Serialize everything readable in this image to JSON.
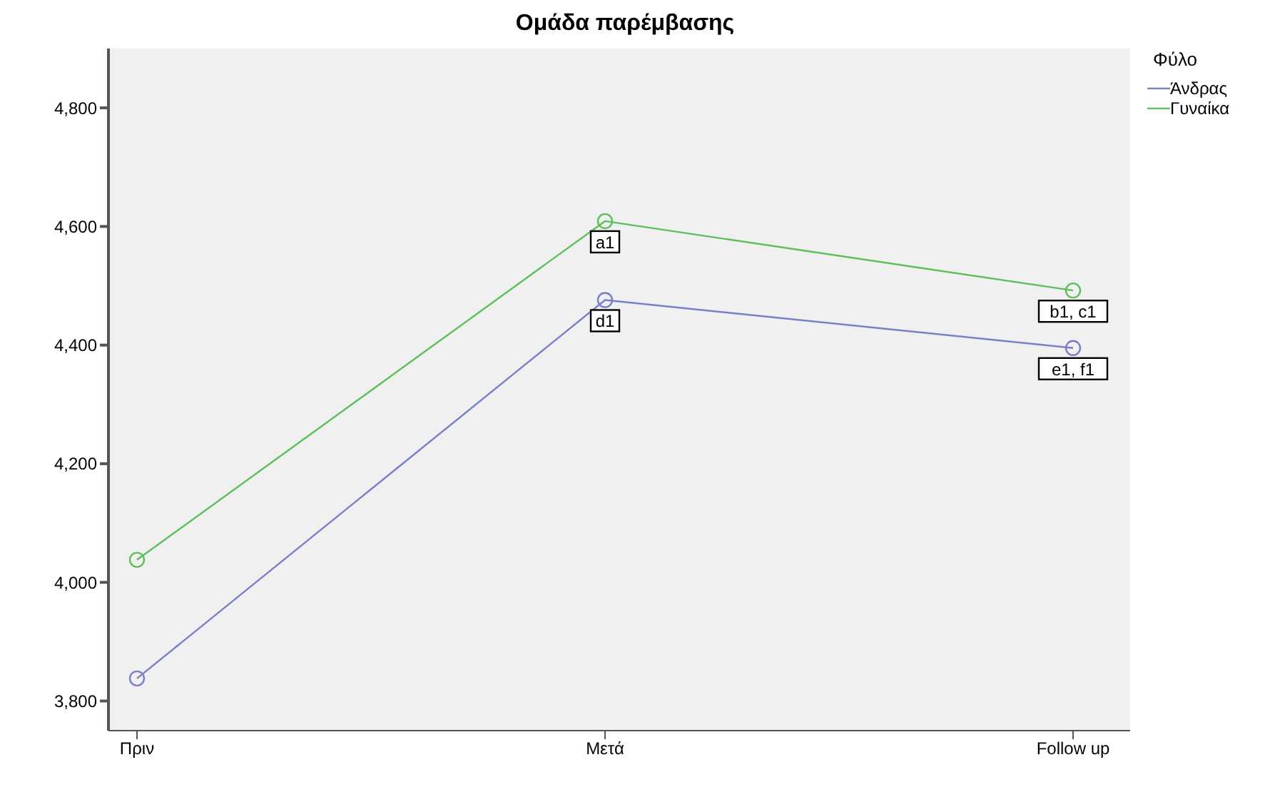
{
  "chart_data": {
    "type": "line",
    "title": "Ομάδα παρέμβασης",
    "legend_title": "Φύλο",
    "categories": [
      "Πριν",
      "Μετά",
      "Follow up"
    ],
    "series": [
      {
        "name": "Άνδρας",
        "color": "#7a80c8",
        "values": [
          3838,
          4476,
          4395
        ]
      },
      {
        "name": "Γυναίκα",
        "color": "#5cbf5c",
        "values": [
          4038,
          4609,
          4492
        ]
      }
    ],
    "ylim": [
      3750,
      4900
    ],
    "yticks": [
      {
        "value": 3800,
        "label": "3,800"
      },
      {
        "value": 4000,
        "label": "4,000"
      },
      {
        "value": 4200,
        "label": "4,200"
      },
      {
        "value": 4400,
        "label": "4,400"
      },
      {
        "value": 4600,
        "label": "4,600"
      },
      {
        "value": 4800,
        "label": "4,800"
      }
    ],
    "annotations": [
      {
        "text": "a1",
        "x": "Μετά",
        "y": 4609
      },
      {
        "text": "d1",
        "x": "Μετά",
        "y": 4476
      },
      {
        "text": "b1, c1",
        "x": "Follow up",
        "y": 4492
      },
      {
        "text": "e1, f1",
        "x": "Follow up",
        "y": 4395
      }
    ],
    "grid": false,
    "legend": "top right",
    "marker": "circle",
    "line_style": "solid"
  }
}
